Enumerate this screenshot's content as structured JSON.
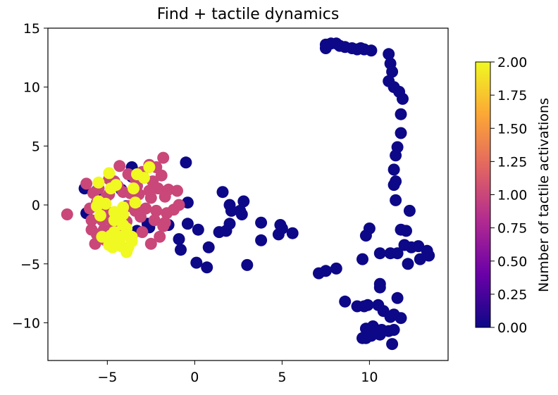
{
  "chart_data": {
    "type": "scatter",
    "title": "Find + tactile dynamics",
    "xlabel": "",
    "ylabel": "",
    "xlim": [
      -8.4,
      14.5
    ],
    "ylim": [
      -13.2,
      15
    ],
    "xticks": [
      {
        "value": -5,
        "label": "−5"
      },
      {
        "value": 0,
        "label": "0"
      },
      {
        "value": 5,
        "label": "5"
      },
      {
        "value": 10,
        "label": "10"
      }
    ],
    "yticks": [
      {
        "value": 15,
        "label": "15"
      },
      {
        "value": 10,
        "label": "10"
      },
      {
        "value": 5,
        "label": "5"
      },
      {
        "value": 0,
        "label": "0"
      },
      {
        "value": -5,
        "label": "−5"
      },
      {
        "value": -10,
        "label": "−10"
      }
    ],
    "grid": false,
    "colorbar": {
      "label": "Number of tactile activations",
      "min": 0.0,
      "max": 2.0,
      "colormap": "plasma",
      "ticks": [
        {
          "value": 0.0,
          "label": "0.00"
        },
        {
          "value": 0.25,
          "label": "0.25"
        },
        {
          "value": 0.5,
          "label": "0.50"
        },
        {
          "value": 0.75,
          "label": "0.75"
        },
        {
          "value": 1.0,
          "label": "1.00"
        },
        {
          "value": 1.25,
          "label": "1.25"
        },
        {
          "value": 1.5,
          "label": "1.50"
        },
        {
          "value": 1.75,
          "label": "1.75"
        },
        {
          "value": 2.0,
          "label": "2.00"
        }
      ],
      "colors": [
        "#0d0887",
        "#6a00a8",
        "#b12a90",
        "#e16462",
        "#fca636",
        "#f0f921"
      ]
    },
    "points": [
      [
        7.5,
        13.6,
        0
      ],
      [
        7.5,
        13.3,
        0
      ],
      [
        7.8,
        13.7,
        0
      ],
      [
        8.1,
        13.7,
        0
      ],
      [
        8.3,
        13.5,
        0
      ],
      [
        8.6,
        13.4,
        0
      ],
      [
        9.0,
        13.3,
        0
      ],
      [
        9.3,
        13.2,
        0
      ],
      [
        9.5,
        13.3,
        0
      ],
      [
        9.7,
        13.2,
        0
      ],
      [
        10.1,
        13.1,
        0
      ],
      [
        11.1,
        12.8,
        0
      ],
      [
        11.2,
        12.0,
        0
      ],
      [
        11.3,
        11.3,
        0
      ],
      [
        11.1,
        10.5,
        0
      ],
      [
        11.4,
        10.0,
        0
      ],
      [
        11.7,
        9.6,
        0
      ],
      [
        11.9,
        9.0,
        0
      ],
      [
        11.8,
        7.7,
        0
      ],
      [
        11.8,
        6.1,
        0
      ],
      [
        11.6,
        4.9,
        0
      ],
      [
        11.5,
        4.2,
        0
      ],
      [
        11.4,
        3.0,
        0
      ],
      [
        11.5,
        2.0,
        0
      ],
      [
        11.4,
        1.7,
        0
      ],
      [
        11.5,
        0.4,
        0
      ],
      [
        12.3,
        -0.5,
        0
      ],
      [
        11.8,
        -2.1,
        0
      ],
      [
        12.1,
        -2.2,
        0
      ],
      [
        12.0,
        -3.4,
        0
      ],
      [
        12.4,
        -3.6,
        0
      ],
      [
        12.8,
        -3.5,
        0
      ],
      [
        13.3,
        -3.9,
        0
      ],
      [
        13.4,
        -4.3,
        0
      ],
      [
        12.9,
        -4.6,
        0
      ],
      [
        12.2,
        -5.0,
        0
      ],
      [
        11.6,
        -4.1,
        0
      ],
      [
        11.2,
        -4.1,
        0
      ],
      [
        10.6,
        -4.1,
        0
      ],
      [
        10.0,
        -2.0,
        0
      ],
      [
        9.8,
        -2.6,
        0
      ],
      [
        9.6,
        -4.6,
        0
      ],
      [
        8.1,
        -5.4,
        0
      ],
      [
        7.5,
        -5.6,
        0
      ],
      [
        7.1,
        -5.8,
        0
      ],
      [
        10.6,
        -6.7,
        0
      ],
      [
        10.6,
        -7.0,
        0
      ],
      [
        11.6,
        -7.9,
        0
      ],
      [
        11.4,
        -9.3,
        0
      ],
      [
        10.8,
        -9.0,
        0
      ],
      [
        11.2,
        -9.5,
        0
      ],
      [
        11.8,
        -9.6,
        0
      ],
      [
        10.5,
        -8.5,
        0
      ],
      [
        9.7,
        -8.6,
        0
      ],
      [
        9.3,
        -8.6,
        0
      ],
      [
        9.9,
        -8.5,
        0
      ],
      [
        8.6,
        -8.2,
        0
      ],
      [
        9.8,
        -10.5,
        0
      ],
      [
        10.2,
        -10.3,
        0
      ],
      [
        10.7,
        -10.6,
        0
      ],
      [
        11.1,
        -10.7,
        0
      ],
      [
        11.4,
        -10.6,
        0
      ],
      [
        10.6,
        -11.0,
        0
      ],
      [
        10.1,
        -11.1,
        0
      ],
      [
        9.8,
        -11.3,
        0
      ],
      [
        9.6,
        -11.3,
        0
      ],
      [
        11.3,
        -11.8,
        0
      ],
      [
        1.6,
        1.1,
        0
      ],
      [
        2.0,
        0.0,
        0
      ],
      [
        2.1,
        -0.5,
        0
      ],
      [
        2.6,
        -0.5,
        0
      ],
      [
        2.8,
        0.3,
        0
      ],
      [
        2.7,
        -0.8,
        0
      ],
      [
        2.0,
        -1.6,
        0
      ],
      [
        1.8,
        -2.2,
        0
      ],
      [
        1.4,
        -2.3,
        0
      ],
      [
        3.8,
        -1.5,
        0
      ],
      [
        4.9,
        -1.7,
        0
      ],
      [
        5.0,
        -2.0,
        0
      ],
      [
        5.6,
        -2.4,
        0
      ],
      [
        4.8,
        -2.5,
        0
      ],
      [
        3.8,
        -3.0,
        0
      ],
      [
        -0.5,
        3.6,
        0
      ],
      [
        -0.4,
        0.2,
        0
      ],
      [
        -0.4,
        -1.6,
        0
      ],
      [
        -0.9,
        -2.9,
        0
      ],
      [
        -0.8,
        -3.8,
        0
      ],
      [
        0.2,
        -2.1,
        0
      ],
      [
        0.8,
        -3.6,
        0
      ],
      [
        0.1,
        -4.9,
        0
      ],
      [
        0.7,
        -5.3,
        0
      ],
      [
        3.0,
        -5.1,
        0
      ],
      [
        -1.5,
        -1.7,
        0
      ],
      [
        -2.7,
        -1.6,
        0
      ],
      [
        -3.3,
        -2.2,
        0
      ],
      [
        -2.6,
        -1.9,
        0
      ],
      [
        -3.6,
        3.2,
        0
      ],
      [
        -3.6,
        2.4,
        0
      ],
      [
        -3.9,
        -0.1,
        0
      ],
      [
        -5.0,
        -0.6,
        0
      ],
      [
        -6.2,
        -0.7,
        0
      ],
      [
        -4.2,
        1.3,
        0
      ],
      [
        -5.6,
        1.2,
        0
      ],
      [
        -6.3,
        1.4,
        0
      ],
      [
        -7.3,
        -0.8,
        1
      ],
      [
        -6.2,
        1.8,
        1
      ],
      [
        -5.8,
        1.0,
        1
      ],
      [
        -5.5,
        1.4,
        1
      ],
      [
        -4.9,
        2.2,
        1
      ],
      [
        -4.3,
        3.3,
        1
      ],
      [
        -4.6,
        2.0,
        1
      ],
      [
        -3.8,
        2.6,
        1
      ],
      [
        -3.4,
        2.2,
        1
      ],
      [
        -3.0,
        2.8,
        1
      ],
      [
        -2.6,
        3.4,
        1
      ],
      [
        -2.2,
        3.2,
        1
      ],
      [
        -1.8,
        4.0,
        1
      ],
      [
        -1.9,
        2.5,
        1
      ],
      [
        -2.4,
        2.0,
        1
      ],
      [
        -2.1,
        1.4,
        1
      ],
      [
        -1.5,
        1.3,
        1
      ],
      [
        -1.7,
        0.7,
        1
      ],
      [
        -2.5,
        0.6,
        1
      ],
      [
        -3.2,
        0.9,
        1
      ],
      [
        -3.7,
        1.0,
        1
      ],
      [
        -4.4,
        1.6,
        1
      ],
      [
        -5.1,
        0.6,
        1
      ],
      [
        -5.6,
        0.2,
        1
      ],
      [
        -6.0,
        -0.3,
        1
      ],
      [
        -5.4,
        -0.3,
        1
      ],
      [
        -4.8,
        -0.7,
        1
      ],
      [
        -4.2,
        -0.6,
        1
      ],
      [
        -3.4,
        -0.5,
        1
      ],
      [
        -2.8,
        -0.3,
        1
      ],
      [
        -2.2,
        -0.5,
        1
      ],
      [
        -1.6,
        -0.7,
        1
      ],
      [
        -1.2,
        -0.4,
        1
      ],
      [
        -0.9,
        0.0,
        1
      ],
      [
        -5.9,
        -1.3,
        1
      ],
      [
        -5.3,
        -1.3,
        1
      ],
      [
        -4.7,
        -1.5,
        1
      ],
      [
        -3.9,
        -1.4,
        1
      ],
      [
        -3.1,
        -1.0,
        1
      ],
      [
        -2.3,
        -1.3,
        1
      ],
      [
        -1.7,
        -1.5,
        1
      ],
      [
        -5.9,
        -2.1,
        1
      ],
      [
        -5.2,
        -2.1,
        1
      ],
      [
        -4.2,
        -2.3,
        1
      ],
      [
        -2.0,
        -2.7,
        1
      ],
      [
        -5.7,
        -3.3,
        1
      ],
      [
        -5.1,
        -3.0,
        1
      ],
      [
        -4.4,
        -3.0,
        1
      ],
      [
        -3.0,
        -2.3,
        1
      ],
      [
        -2.5,
        -3.3,
        1
      ],
      [
        -4.1,
        1.1,
        1
      ],
      [
        -3.8,
        -0.1,
        1
      ],
      [
        -2.6,
        1.2,
        1
      ],
      [
        -1.0,
        1.2,
        1
      ],
      [
        -3.3,
        1.6,
        1
      ],
      [
        -4.9,
        0.9,
        1
      ],
      [
        -5.6,
        -2.5,
        1
      ],
      [
        -1.8,
        -1.8,
        1
      ],
      [
        -5.5,
        0.3,
        2
      ],
      [
        -5.6,
        -0.1,
        2
      ],
      [
        -5.1,
        0.1,
        2
      ],
      [
        -4.8,
        1.4,
        2
      ],
      [
        -5.5,
        1.9,
        2
      ],
      [
        -4.9,
        2.7,
        2
      ],
      [
        -4.5,
        1.7,
        2
      ],
      [
        -3.5,
        1.4,
        2
      ],
      [
        -3.3,
        2.6,
        2
      ],
      [
        -2.9,
        2.3,
        2
      ],
      [
        -2.6,
        3.2,
        2
      ],
      [
        -3.4,
        0.2,
        2
      ],
      [
        -4.1,
        -0.2,
        2
      ],
      [
        -4.1,
        -0.8,
        2
      ],
      [
        -4.6,
        -0.6,
        2
      ],
      [
        -5.4,
        -0.9,
        2
      ],
      [
        -4.6,
        -1.3,
        2
      ],
      [
        -4.1,
        -1.7,
        2
      ],
      [
        -3.9,
        -2.0,
        2
      ],
      [
        -4.6,
        -2.3,
        2
      ],
      [
        -4.8,
        -2.6,
        2
      ],
      [
        -4.2,
        -2.7,
        2
      ],
      [
        -3.6,
        -2.7,
        2
      ],
      [
        -3.6,
        -3.1,
        2
      ],
      [
        -4.5,
        -3.2,
        2
      ],
      [
        -4.9,
        -3.4,
        2
      ],
      [
        -4.2,
        -3.5,
        2
      ],
      [
        -4.7,
        -3.6,
        2
      ],
      [
        -3.9,
        -4.0,
        2
      ],
      [
        -3.8,
        -3.6,
        2
      ],
      [
        -5.3,
        -2.7,
        2
      ]
    ]
  }
}
